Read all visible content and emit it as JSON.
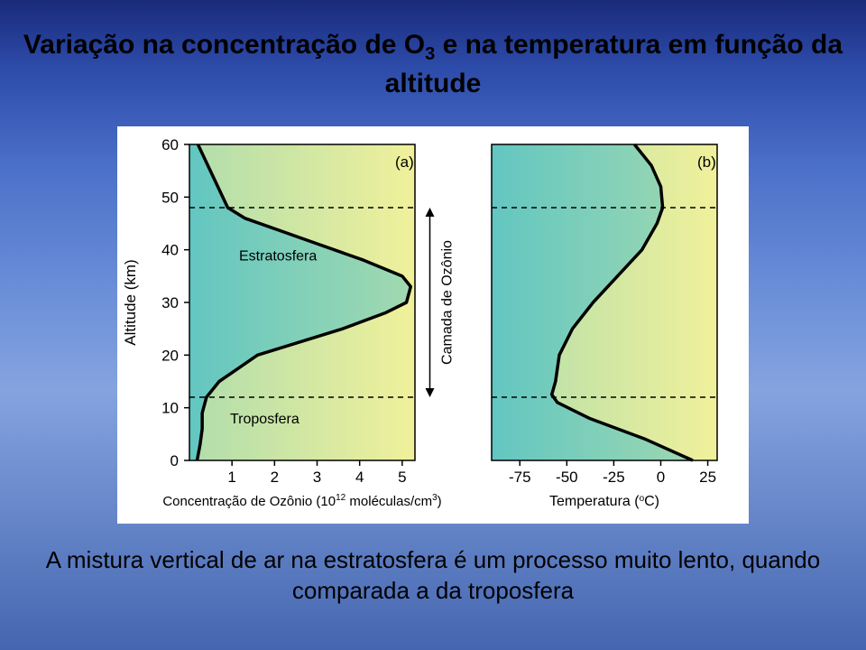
{
  "title_html": "Variação na concentração de O<sub>3</sub> e na temperatura em função da altitude",
  "caption": "A mistura vertical de ar na estratosfera é um processo muito lento, quando comparada a da troposfera",
  "y_axis": {
    "label": "Altitude (km)",
    "ticks": [
      0,
      10,
      20,
      30,
      40,
      50,
      60
    ],
    "label_fontsize": 17,
    "tick_fontsize": 17
  },
  "panel_a": {
    "tag": "(a)",
    "x_label": "Concentração de Ozônio (10",
    "x_label_sup": "12",
    "x_label_tail": " moléculas/cm",
    "x_label_sup2": "3",
    "x_label_close": ")",
    "x_ticks": [
      1,
      2,
      3,
      4,
      5
    ],
    "xlim": [
      0,
      5.3
    ],
    "curve_alt_km": [
      0,
      3,
      6,
      9,
      12,
      15,
      20,
      25,
      28,
      30,
      33,
      35,
      38,
      42,
      46,
      48,
      60
    ],
    "curve_x": [
      0.18,
      0.25,
      0.3,
      0.3,
      0.4,
      0.7,
      1.6,
      3.6,
      4.6,
      5.1,
      5.2,
      5.0,
      4.1,
      2.7,
      1.3,
      0.9,
      0.2
    ],
    "annot_estrat": "Estratosfera",
    "annot_tropo": "Troposfera",
    "bg_left": "#63c6c1",
    "bg_right": "#f1f19a"
  },
  "panel_b": {
    "tag": "(b)",
    "x_label": "Temperatura (",
    "x_label_deg": "o",
    "x_label_tail": "C)",
    "x_ticks": [
      -75,
      -50,
      -25,
      0,
      25
    ],
    "xlim": [
      -90,
      30
    ],
    "curve_alt_km": [
      0,
      4,
      8,
      11,
      12.5,
      15,
      20,
      25,
      30,
      35,
      40,
      45,
      48,
      52,
      56,
      60
    ],
    "curve_x": [
      17,
      -8,
      -38,
      -55,
      -58,
      -56,
      -54,
      -47,
      -36,
      -23,
      -10,
      -2,
      1,
      0,
      -5,
      -14
    ],
    "mid_label": "Camada de Ozônio",
    "bg_left": "#63c6c1",
    "bg_right": "#f1f19a"
  },
  "dashed_alt": [
    12,
    48
  ],
  "colors": {
    "line": "#000000",
    "tick": "#000000",
    "dash": "#000000"
  }
}
